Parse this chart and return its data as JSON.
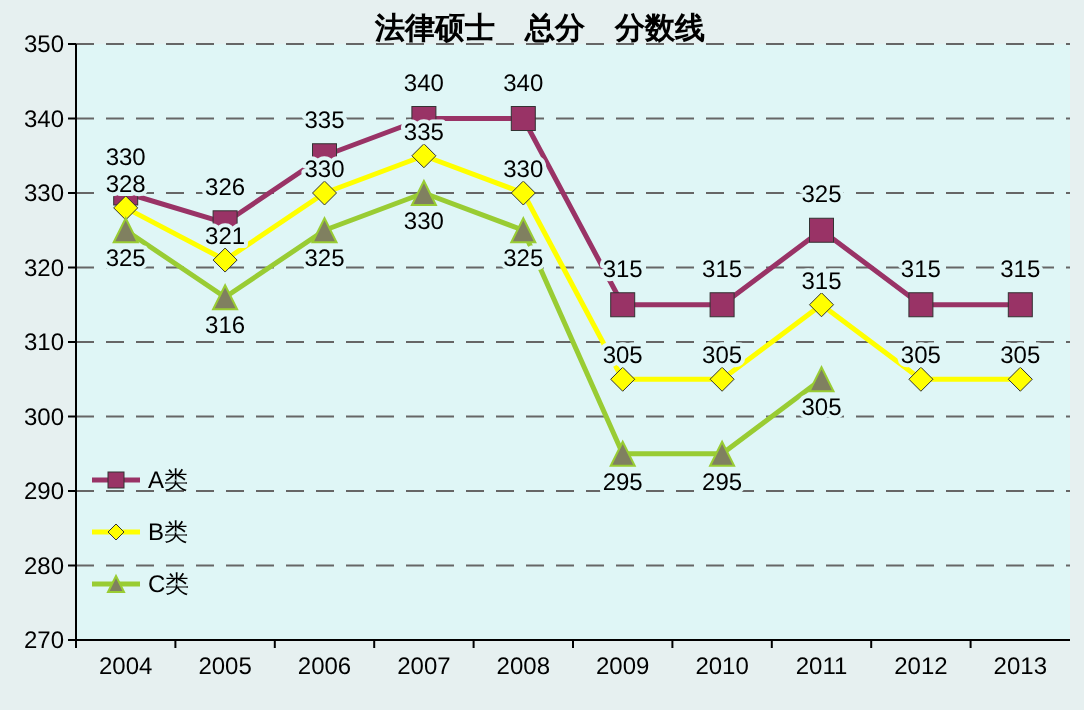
{
  "chart_data": {
    "type": "line",
    "title": "法律硕士　总分　分数线",
    "categories": [
      "2004",
      "2005",
      "2006",
      "2007",
      "2008",
      "2009",
      "2010",
      "2011",
      "2012",
      "2013"
    ],
    "series": [
      {
        "name": "A类",
        "color": "#993366",
        "marker": "square",
        "values": [
          330,
          326,
          335,
          340,
          340,
          315,
          315,
          325,
          315,
          315
        ]
      },
      {
        "name": "B类",
        "color": "#ffff00",
        "marker": "diamond",
        "values": [
          328,
          321,
          330,
          335,
          330,
          305,
          305,
          315,
          305,
          305
        ]
      },
      {
        "name": "C类",
        "color": "#99cc33",
        "marker": "triangle",
        "values": [
          325,
          316,
          325,
          330,
          325,
          295,
          295,
          305,
          null,
          null
        ]
      }
    ],
    "ylim": [
      270,
      350
    ],
    "yticks": [
      270,
      280,
      290,
      300,
      310,
      320,
      330,
      340,
      350
    ],
    "grid": "y",
    "legend": "bottom left",
    "data_labels": true
  }
}
